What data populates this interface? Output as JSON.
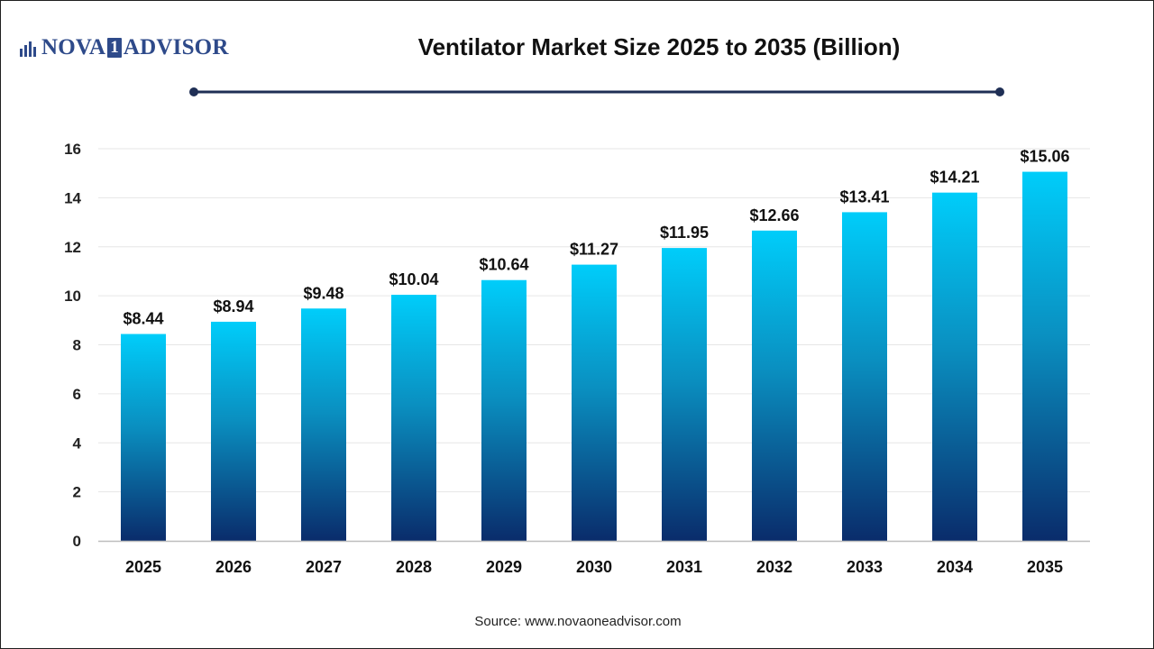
{
  "logo": {
    "part1": "NOVA",
    "box": "1",
    "part2": "ADVISOR"
  },
  "source_text": "Source: www.novaoneadvisor.com",
  "colors": {
    "bar_top": "#00cdfa",
    "bar_bottom": "#0a2c6b",
    "brand": "#2e4a8a",
    "rule": "#1f2f55"
  },
  "chart_data": {
    "type": "bar",
    "title": "Ventilator Market Size 2025 to 2035 (Billion)",
    "xlabel": "",
    "ylabel": "",
    "categories": [
      "2025",
      "2026",
      "2027",
      "2028",
      "2029",
      "2030",
      "2031",
      "2032",
      "2033",
      "2034",
      "2035"
    ],
    "values": [
      8.44,
      8.94,
      9.48,
      10.04,
      10.64,
      11.27,
      11.95,
      12.66,
      13.41,
      14.21,
      15.06
    ],
    "value_labels": [
      "$8.44",
      "$8.94",
      "$9.48",
      "$10.04",
      "$10.64",
      "$11.27",
      "$11.95",
      "$12.66",
      "$13.41",
      "$14.21",
      "$15.06"
    ],
    "ylim": [
      0,
      16
    ],
    "yticks": [
      0,
      2,
      4,
      6,
      8,
      10,
      12,
      14,
      16
    ],
    "grid": true,
    "legend": "none"
  }
}
